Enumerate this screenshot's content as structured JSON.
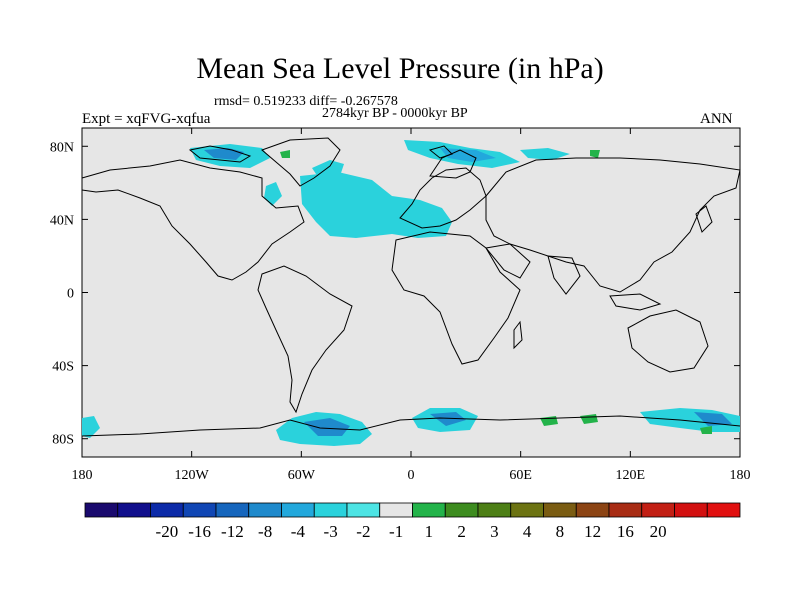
{
  "header": {
    "title": "Mean Sea Level Pressure (in hPa)",
    "stats": "rmsd= 0.519233 diff= -0.267578",
    "period": "2784kyr BP - 0000kyr BP",
    "experiment": "Expt = xqFVG-xqfua",
    "season": "ANN"
  },
  "map": {
    "projection": "cylindrical equidistant",
    "lon_range": [
      -180,
      180
    ],
    "lat_range": [
      -90,
      90
    ],
    "background_color": "#e6e6e6",
    "coastline_color": "#000000",
    "lat_labels": [
      {
        "value": 80,
        "text": "80N"
      },
      {
        "value": 40,
        "text": "40N"
      },
      {
        "value": 0,
        "text": "0"
      },
      {
        "value": -40,
        "text": "40S"
      },
      {
        "value": -80,
        "text": "80S"
      }
    ],
    "lon_labels": [
      {
        "value": -180,
        "text": "180"
      },
      {
        "value": -120,
        "text": "120W"
      },
      {
        "value": -60,
        "text": "60W"
      },
      {
        "value": 0,
        "text": "0"
      },
      {
        "value": 60,
        "text": "60E"
      },
      {
        "value": 120,
        "text": "120E"
      },
      {
        "value": 180,
        "text": "180"
      }
    ]
  },
  "colorbar": {
    "colors": [
      "#1a0a6e",
      "#110f8c",
      "#0c2aa8",
      "#1046b4",
      "#1666bd",
      "#1f8acc",
      "#22a8dc",
      "#2ad2dc",
      "#4de4e4",
      "#e6e6e6",
      "#23b34a",
      "#3d8c1f",
      "#4d7f16",
      "#6c7312",
      "#7a5c12",
      "#8c4414",
      "#a82c14",
      "#c21f14",
      "#d21010",
      "#e11010"
    ],
    "labels": [
      "-20",
      "-16",
      "-12",
      "-8",
      "-4",
      "-3",
      "-2",
      "-1",
      "1",
      "2",
      "3",
      "4",
      "8",
      "12",
      "16",
      "20"
    ]
  },
  "regions": [
    {
      "name": "north-atlantic-negative",
      "color": "#2ad2dc"
    },
    {
      "name": "arctic-canada-negative",
      "color": "#1f8acc"
    },
    {
      "name": "barents-sea-negative",
      "color": "#22a8dc"
    },
    {
      "name": "antarctic-weddell-negative",
      "color": "#22a8dc"
    },
    {
      "name": "antarctic-east-negative",
      "color": "#1f8acc"
    },
    {
      "name": "antarctic-positive-patches",
      "color": "#23b34a"
    }
  ]
}
